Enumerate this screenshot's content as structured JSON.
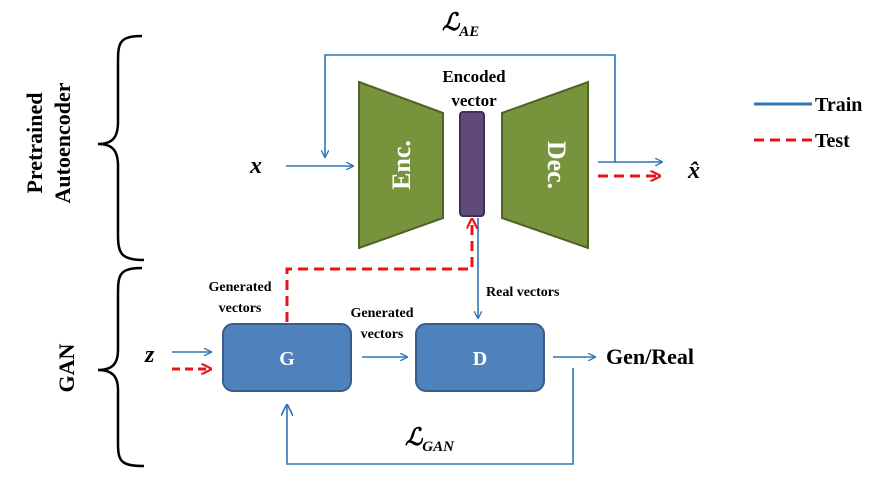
{
  "groups": {
    "autoencoder_line1": "Pretrained",
    "autoencoder_line2": "Autoencoder",
    "gan": "GAN"
  },
  "losses": {
    "ae_symbol": "ℒ",
    "ae_subscript": "AE",
    "gan_symbol": "ℒ",
    "gan_subscript": "GAN"
  },
  "autoencoder": {
    "input": "x",
    "output": "x̂",
    "encoder": "Enc.",
    "decoder": "Dec.",
    "encoded_line1": "Encoded",
    "encoded_line2": "vector"
  },
  "gan": {
    "input": "z",
    "generator": "G",
    "discriminator": "D",
    "output": "Gen/Real",
    "generated_left_line1": "Generated",
    "generated_left_line2": "vectors",
    "generated_mid_line1": "Generated",
    "generated_mid_line2": "vectors",
    "real_vectors": "Real vectors"
  },
  "legend": {
    "train": "Train",
    "test": "Test"
  },
  "colors": {
    "train_line": "#2E75B6",
    "test_line": "#E8141B",
    "trapezoid_fill": "#77933C",
    "trapezoid_stroke": "#4F6228",
    "box_fill": "#4F81BD",
    "box_stroke": "#385D8A",
    "vector_fill": "#604A7B",
    "vector_stroke": "#3F3151"
  }
}
